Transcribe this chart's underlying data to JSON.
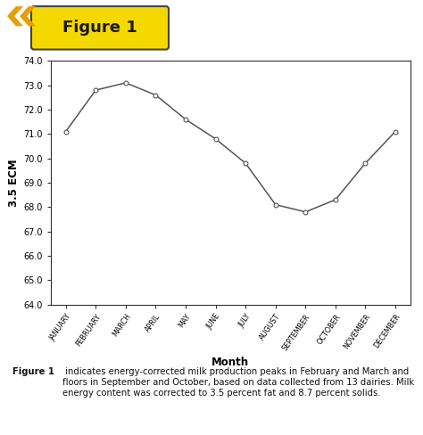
{
  "months": [
    "JANUARY",
    "FEBRUARY",
    "MARCH",
    "APRIL",
    "MAY",
    "JUNE",
    "JULY",
    "AUGUST",
    "SEPTEMBER",
    "OCTOBER",
    "NOVEMBER",
    "DECEMBER"
  ],
  "values": [
    71.1,
    72.8,
    73.1,
    72.6,
    71.6,
    70.8,
    69.8,
    68.1,
    67.8,
    68.3,
    69.8,
    71.1
  ],
  "ylim": [
    64.0,
    74.0
  ],
  "yticks": [
    64.0,
    65.0,
    66.0,
    67.0,
    68.0,
    69.0,
    70.0,
    71.0,
    72.0,
    73.0,
    74.0
  ],
  "ylabel": "3.5 ECM",
  "xlabel": "Month",
  "line_color": "#555555",
  "marker": "o",
  "marker_size": 3.5,
  "marker_facecolor": "white",
  "marker_edgecolor": "#555555",
  "figure_title": "Figure 1",
  "caption_bold": "Figure 1",
  "caption_text": " indicates energy-corrected milk production peaks in February and March and floors in September and October, based on data collected from 13 dairies. Milk energy content was corrected to 3.5 percent fat and 8.7 percent solids.",
  "bg_color": "#ffffff",
  "plot_bg_color": "#ffffff",
  "border_color": "#333333",
  "header_bg": "#f5d800",
  "header_text_color": "#1a1a1a",
  "chevron_color": "#e8a000",
  "chevron_dark": "#c07800"
}
